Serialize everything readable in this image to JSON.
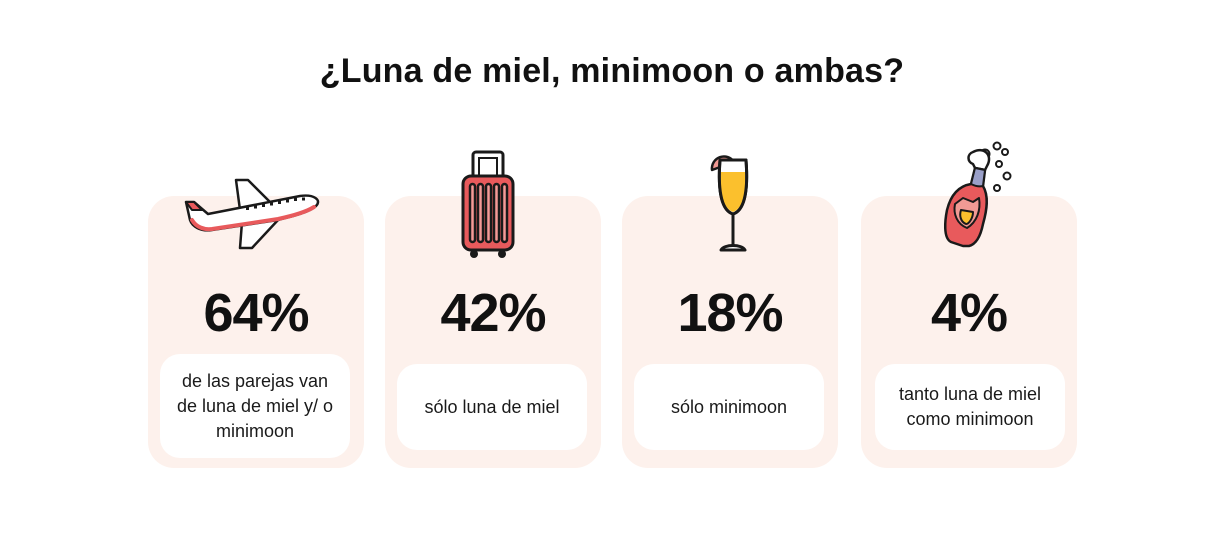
{
  "title": "¿Luna de miel, minimoon o ambas?",
  "colors": {
    "card_bg": "#fdf1ec",
    "accent_red": "#e85a5c",
    "accent_pink": "#f19a94",
    "accent_yellow": "#fbc02d"
  },
  "cards": [
    {
      "icon": "airplane-icon",
      "percent": "64%",
      "label": "de las parejas van de luna de miel y/ o minimoon"
    },
    {
      "icon": "suitcase-icon",
      "percent": "42%",
      "label": "sólo luna de miel"
    },
    {
      "icon": "champagne-glass-icon",
      "percent": "18%",
      "label": "sólo minimoon"
    },
    {
      "icon": "champagne-bottle-icon",
      "percent": "4%",
      "label": "tanto luna de miel como minimoon"
    }
  ]
}
